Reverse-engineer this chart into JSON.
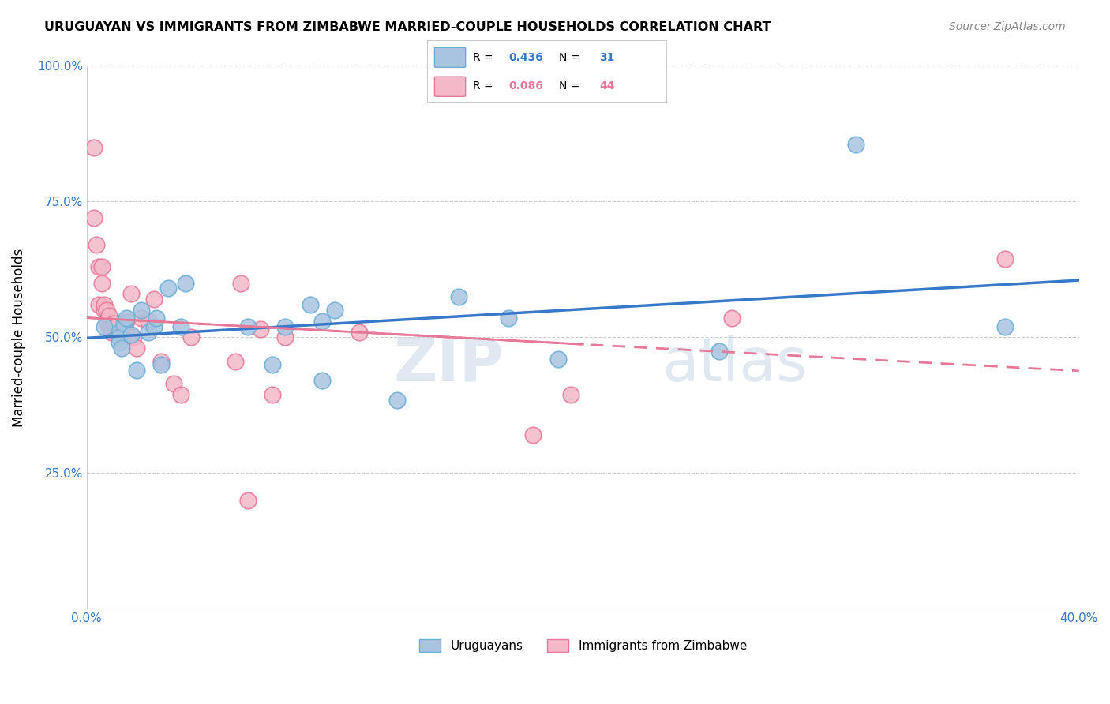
{
  "title": "URUGUAYAN VS IMMIGRANTS FROM ZIMBABWE MARRIED-COUPLE HOUSEHOLDS CORRELATION CHART",
  "source": "Source: ZipAtlas.com",
  "ylabel": "Married-couple Households",
  "x_min": 0.0,
  "x_max": 0.4,
  "y_min": 0.0,
  "y_max": 1.0,
  "x_ticks": [
    0.0,
    0.05,
    0.1,
    0.15,
    0.2,
    0.25,
    0.3,
    0.35,
    0.4
  ],
  "x_tick_labels": [
    "0.0%",
    "",
    "",
    "",
    "",
    "",
    "",
    "",
    "40.0%"
  ],
  "y_ticks": [
    0.0,
    0.25,
    0.5,
    0.75,
    1.0
  ],
  "y_tick_labels": [
    "",
    "25.0%",
    "50.0%",
    "75.0%",
    "100.0%"
  ],
  "blue_color": "#a8c4e0",
  "blue_edge": "#6aaed6",
  "pink_color": "#f4b8c8",
  "pink_edge": "#e87898",
  "line_blue": "#3878c8",
  "line_pink": "#e87898",
  "legend_r_blue": "0.436",
  "legend_n_blue": "31",
  "legend_r_pink": "0.086",
  "legend_n_pink": "44",
  "legend_label_blue": "Uruguayans",
  "legend_label_pink": "Immigrants from Zimbabwe",
  "watermark_zip": "ZIP",
  "watermark_atlas": "atlas",
  "blue_x": [
    0.007,
    0.013,
    0.013,
    0.013,
    0.014,
    0.015,
    0.016,
    0.018,
    0.02,
    0.022,
    0.025,
    0.027,
    0.028,
    0.03,
    0.033,
    0.038,
    0.04,
    0.065,
    0.075,
    0.08,
    0.09,
    0.095,
    0.095,
    0.1,
    0.125,
    0.15,
    0.17,
    0.19,
    0.255,
    0.31,
    0.37
  ],
  "blue_y": [
    0.52,
    0.51,
    0.5,
    0.49,
    0.48,
    0.525,
    0.535,
    0.505,
    0.44,
    0.55,
    0.51,
    0.52,
    0.535,
    0.45,
    0.59,
    0.52,
    0.6,
    0.52,
    0.45,
    0.52,
    0.56,
    0.53,
    0.42,
    0.55,
    0.385,
    0.575,
    0.535,
    0.46,
    0.475,
    0.855,
    0.52
  ],
  "pink_x": [
    0.003,
    0.003,
    0.004,
    0.005,
    0.005,
    0.006,
    0.006,
    0.007,
    0.007,
    0.008,
    0.008,
    0.009,
    0.009,
    0.01,
    0.01,
    0.011,
    0.012,
    0.013,
    0.014,
    0.015,
    0.015,
    0.016,
    0.017,
    0.018,
    0.019,
    0.02,
    0.022,
    0.025,
    0.027,
    0.03,
    0.035,
    0.038,
    0.042,
    0.06,
    0.062,
    0.065,
    0.07,
    0.075,
    0.08,
    0.11,
    0.18,
    0.195,
    0.26,
    0.37
  ],
  "pink_y": [
    0.85,
    0.72,
    0.67,
    0.63,
    0.56,
    0.63,
    0.6,
    0.55,
    0.56,
    0.55,
    0.53,
    0.52,
    0.54,
    0.52,
    0.51,
    0.525,
    0.52,
    0.5,
    0.51,
    0.52,
    0.515,
    0.53,
    0.505,
    0.58,
    0.5,
    0.48,
    0.535,
    0.53,
    0.57,
    0.455,
    0.415,
    0.395,
    0.5,
    0.455,
    0.6,
    0.2,
    0.515,
    0.395,
    0.5,
    0.51,
    0.32,
    0.395,
    0.535,
    0.645
  ]
}
